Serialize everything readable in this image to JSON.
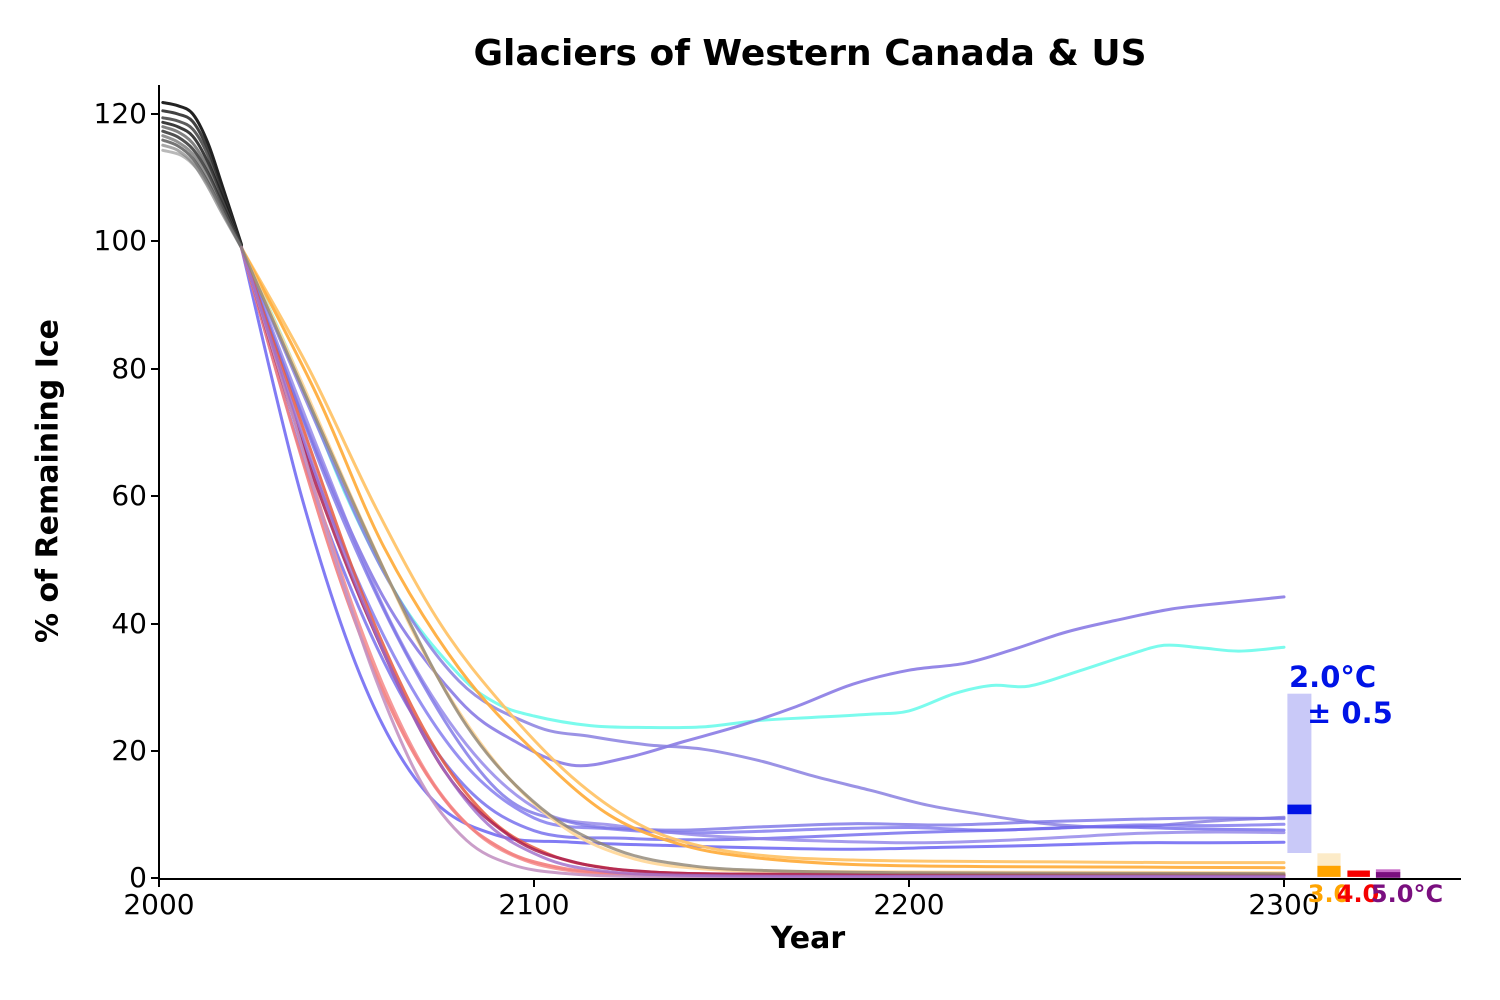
{
  "chart_data": {
    "type": "line",
    "title": "Glaciers of Western Canada & US",
    "xlabel": "Year",
    "ylabel": "% of Remaining Ice",
    "xlim": [
      2000,
      2347
    ],
    "ylim": [
      0,
      124.5
    ],
    "grid": false,
    "x_ticks": [
      "2000",
      "2100",
      "2200",
      "2300"
    ],
    "y_ticks": [
      "0",
      "20",
      "40",
      "60",
      "80",
      "100",
      "120"
    ],
    "annotations": {
      "t20_line1": "2.0°C",
      "t20_line2": "± 0.5",
      "t20_color": "#0013E6",
      "t30_label": "3.0",
      "t30_color": "#FFA400",
      "t40_label": "4.0",
      "t40_color": "#F40000",
      "t50_label": "5.0°C",
      "t50_color": "#7A0F7F"
    },
    "series": [
      {
        "name": "historical-1",
        "color": "#0a0a0a",
        "opacity": 0.9,
        "width": 3,
        "x": [
          2001,
          2005,
          2009,
          2013,
          2017,
          2022
        ],
        "y": [
          121.8,
          121.3,
          120.0,
          115.5,
          108.5,
          99.5
        ]
      },
      {
        "name": "historical-2",
        "color": "#202020",
        "opacity": 0.85,
        "width": 3,
        "x": [
          2001,
          2005,
          2009,
          2013,
          2017,
          2022
        ],
        "y": [
          120.5,
          120.0,
          118.8,
          114.5,
          108.0,
          99.4
        ]
      },
      {
        "name": "historical-3",
        "color": "#333333",
        "opacity": 0.8,
        "width": 3,
        "x": [
          2001,
          2005,
          2009,
          2013,
          2017,
          2022
        ],
        "y": [
          119.4,
          118.9,
          117.6,
          113.6,
          107.4,
          99.3
        ]
      },
      {
        "name": "historical-4",
        "color": "#1a1a1a",
        "opacity": 0.85,
        "width": 3,
        "x": [
          2001,
          2005,
          2009,
          2013,
          2017,
          2022
        ],
        "y": [
          118.7,
          118.0,
          116.5,
          112.5,
          106.8,
          99.2
        ]
      },
      {
        "name": "historical-5",
        "color": "#4d4d4d",
        "opacity": 0.7,
        "width": 3,
        "x": [
          2001,
          2005,
          2009,
          2013,
          2017,
          2022
        ],
        "y": [
          118.0,
          117.2,
          115.4,
          111.6,
          106.2,
          99.2
        ]
      },
      {
        "name": "historical-6",
        "color": "#262626",
        "opacity": 0.8,
        "width": 3,
        "x": [
          2001,
          2005,
          2009,
          2013,
          2017,
          2022
        ],
        "y": [
          117.3,
          116.4,
          114.5,
          110.8,
          105.7,
          99.1
        ]
      },
      {
        "name": "historical-7",
        "color": "#595959",
        "opacity": 0.65,
        "width": 3,
        "x": [
          2001,
          2005,
          2009,
          2013,
          2017,
          2022
        ],
        "y": [
          116.6,
          115.6,
          113.7,
          110.0,
          105.2,
          99.1
        ]
      },
      {
        "name": "historical-8",
        "color": "#3b3b3b",
        "opacity": 0.7,
        "width": 3,
        "x": [
          2001,
          2005,
          2009,
          2013,
          2017,
          2022
        ],
        "y": [
          115.9,
          115.0,
          113.0,
          109.3,
          104.7,
          99.0
        ]
      },
      {
        "name": "historical-9",
        "color": "#6e6e6e",
        "opacity": 0.6,
        "width": 3,
        "x": [
          2001,
          2005,
          2009,
          2013,
          2017,
          2022
        ],
        "y": [
          115.1,
          114.3,
          112.3,
          108.6,
          104.2,
          99.0
        ]
      },
      {
        "name": "historical-10",
        "color": "#808080",
        "opacity": 0.55,
        "width": 3,
        "x": [
          2001,
          2006,
          2010,
          2014,
          2018,
          2022
        ],
        "y": [
          114.3,
          113.5,
          111.5,
          108.0,
          103.4,
          99.0
        ]
      },
      {
        "name": "scenario-cyan",
        "color": "#74FBEC",
        "opacity": 0.95,
        "width": 3,
        "x": [
          2022,
          2035,
          2050,
          2065,
          2080,
          2090,
          2100,
          2115,
          2130,
          2145,
          2160,
          2175,
          2190,
          2200,
          2212,
          2222,
          2232,
          2245,
          2258,
          2268,
          2278,
          2288,
          2300
        ],
        "y": [
          99,
          82,
          60,
          43,
          32,
          27.5,
          25.5,
          24,
          23.7,
          23.8,
          24.8,
          25.3,
          25.8,
          26.3,
          29,
          30.3,
          30.2,
          32.5,
          35,
          36.6,
          36.2,
          35.7,
          36.3
        ]
      },
      {
        "name": "scenario-purple-rise",
        "color": "#8A7BE4",
        "opacity": 0.9,
        "width": 3,
        "x": [
          2022,
          2040,
          2060,
          2080,
          2095,
          2110,
          2125,
          2140,
          2155,
          2170,
          2185,
          2200,
          2215,
          2228,
          2242,
          2255,
          2270,
          2285,
          2300
        ],
        "y": [
          99,
          70,
          44,
          28,
          21.5,
          17.8,
          19,
          21.5,
          24,
          27,
          30.5,
          32.7,
          33.8,
          36,
          38.7,
          40.5,
          42.3,
          43.3,
          44.2
        ]
      },
      {
        "name": "scenario-purple-mid",
        "color": "#8A80E0",
        "opacity": 0.85,
        "width": 3,
        "x": [
          2022,
          2040,
          2060,
          2080,
          2100,
          2115,
          2130,
          2145,
          2160,
          2175,
          2190,
          2205,
          2220,
          2235,
          2250,
          2265,
          2280,
          2300
        ],
        "y": [
          99,
          74,
          48,
          31,
          24,
          22.3,
          21,
          20.3,
          18.5,
          16,
          13.8,
          11.5,
          10,
          8.7,
          8.1,
          8.3,
          9,
          9.6
        ]
      },
      {
        "name": "scenario-blue-a",
        "color": "#7D76EE",
        "opacity": 0.8,
        "width": 3,
        "x": [
          2022,
          2040,
          2060,
          2080,
          2100,
          2120,
          2140,
          2160,
          2180,
          2200,
          2220,
          2240,
          2260,
          2280,
          2300
        ],
        "y": [
          99,
          66,
          38,
          19,
          9.5,
          7.8,
          7.2,
          7.4,
          7.8,
          8,
          7.6,
          7.9,
          8.4,
          8.3,
          8.5
        ]
      },
      {
        "name": "scenario-blue-b",
        "color": "#6F68EC",
        "opacity": 0.8,
        "width": 3,
        "x": [
          2022,
          2040,
          2060,
          2080,
          2100,
          2125,
          2150,
          2175,
          2200,
          2225,
          2250,
          2275,
          2300
        ],
        "y": [
          99,
          63,
          34,
          15.5,
          7.5,
          6.3,
          6.1,
          6.6,
          7.2,
          7.6,
          8.1,
          7.8,
          7.6
        ]
      },
      {
        "name": "scenario-blue-c",
        "color": "#574FF0",
        "opacity": 0.75,
        "width": 3,
        "x": [
          2022,
          2038,
          2055,
          2072,
          2090,
          2110,
          2135,
          2160,
          2185,
          2210,
          2235,
          2260,
          2280,
          2300
        ],
        "y": [
          99,
          60,
          30,
          13,
          6.8,
          5.7,
          5.2,
          4.8,
          4.6,
          4.9,
          5.2,
          5.6,
          5.6,
          5.7
        ]
      },
      {
        "name": "scenario-blue-d",
        "color": "#8E82E8",
        "opacity": 0.8,
        "width": 3,
        "x": [
          2022,
          2042,
          2062,
          2082,
          2102,
          2122,
          2142,
          2162,
          2182,
          2202,
          2222,
          2242,
          2262,
          2282,
          2300
        ],
        "y": [
          99,
          68,
          40,
          21,
          10.5,
          8.3,
          6.9,
          6.2,
          5.8,
          5.6,
          5.9,
          6.5,
          7.1,
          7.3,
          7.2
        ]
      },
      {
        "name": "scenario-blue-e",
        "color": "#7A73E6",
        "opacity": 0.8,
        "width": 3,
        "x": [
          2022,
          2045,
          2068,
          2090,
          2110,
          2135,
          2160,
          2185,
          2210,
          2235,
          2260,
          2280,
          2300
        ],
        "y": [
          99,
          62,
          33,
          14,
          8.8,
          7.6,
          8.1,
          8.6,
          8.4,
          8.9,
          9.3,
          9.5,
          9.4
        ]
      },
      {
        "name": "scenario-amber-a",
        "color": "#FFC469",
        "opacity": 0.95,
        "width": 3,
        "x": [
          2022,
          2040,
          2058,
          2075,
          2092,
          2110,
          2128,
          2145,
          2165,
          2185,
          2210,
          2240,
          2270,
          2300
        ],
        "y": [
          99,
          80,
          58,
          40,
          27,
          16,
          8.5,
          5,
          3.4,
          2.9,
          2.7,
          2.6,
          2.5,
          2.5
        ]
      },
      {
        "name": "scenario-amber-b",
        "color": "#FFAE3F",
        "opacity": 0.95,
        "width": 3,
        "x": [
          2022,
          2042,
          2060,
          2080,
          2100,
          2120,
          2140,
          2160,
          2185,
          2215,
          2250,
          2300
        ],
        "y": [
          99,
          76,
          52,
          33,
          20,
          10,
          5.2,
          3.2,
          2.2,
          1.9,
          1.8,
          1.7
        ]
      },
      {
        "name": "scenario-amber-c",
        "color": "#FFD89B",
        "opacity": 0.95,
        "width": 3,
        "x": [
          2022,
          2038,
          2055,
          2072,
          2090,
          2108,
          2126,
          2145,
          2170,
          2210,
          2260,
          2300
        ],
        "y": [
          99,
          78,
          55,
          34,
          18,
          8,
          3.2,
          1.5,
          1.1,
          1.0,
          0.95,
          0.9
        ]
      },
      {
        "name": "scenario-salmon-a",
        "color": "#F58F8F",
        "opacity": 0.9,
        "width": 3,
        "x": [
          2022,
          2035,
          2048,
          2060,
          2072,
          2084,
          2096,
          2110,
          2130,
          2160,
          2220,
          2300
        ],
        "y": [
          99,
          74,
          49,
          30,
          16,
          7.5,
          3.2,
          1.2,
          0.5,
          0.35,
          0.3,
          0.3
        ]
      },
      {
        "name": "scenario-salmon-b",
        "color": "#F37F7E",
        "opacity": 0.9,
        "width": 3,
        "x": [
          2022,
          2036,
          2050,
          2064,
          2078,
          2092,
          2106,
          2122,
          2145,
          2200,
          2300
        ],
        "y": [
          99,
          70,
          44,
          24,
          11,
          4.5,
          1.8,
          0.8,
          0.45,
          0.35,
          0.3
        ]
      },
      {
        "name": "scenario-redorange",
        "color": "#E65A40",
        "opacity": 0.85,
        "width": 3,
        "x": [
          2022,
          2040,
          2056,
          2072,
          2088,
          2104,
          2120,
          2140,
          2170,
          2220,
          2300
        ],
        "y": [
          99,
          68,
          42,
          22,
          9.5,
          3.8,
          1.6,
          0.8,
          0.6,
          0.55,
          0.5
        ]
      },
      {
        "name": "scenario-crimson",
        "color": "#AC2050",
        "opacity": 0.85,
        "width": 3,
        "x": [
          2022,
          2040,
          2058,
          2076,
          2094,
          2112,
          2132,
          2155,
          2200,
          2300
        ],
        "y": [
          99,
          65,
          38,
          17,
          6.5,
          2.4,
          1.0,
          0.7,
          0.6,
          0.55
        ]
      },
      {
        "name": "scenario-plum",
        "color": "#C493C3",
        "opacity": 0.9,
        "width": 3,
        "x": [
          2022,
          2034,
          2046,
          2058,
          2070,
          2082,
          2094,
          2108,
          2130,
          2180,
          2300
        ],
        "y": [
          99,
          76,
          52,
          31,
          15,
          6,
          2.2,
          0.8,
          0.3,
          0.2,
          0.2
        ]
      },
      {
        "name": "scenario-violet",
        "color": "#9E6BCB",
        "opacity": 0.8,
        "width": 3,
        "x": [
          2022,
          2038,
          2054,
          2070,
          2086,
          2102,
          2118,
          2140,
          2180,
          2300
        ],
        "y": [
          99,
          70,
          44,
          23,
          9.5,
          3.4,
          1.2,
          0.5,
          0.35,
          0.3
        ]
      },
      {
        "name": "scenario-gray",
        "color": "#8E8474",
        "opacity": 0.8,
        "width": 3,
        "x": [
          2022,
          2042,
          2062,
          2082,
          2102,
          2122,
          2142,
          2165,
          2200,
          2260,
          2300
        ],
        "y": [
          99,
          72,
          46,
          24,
          11,
          4.5,
          2.0,
          1.2,
          0.9,
          0.8,
          0.75
        ]
      }
    ],
    "summary_bars": [
      {
        "name": "bar-2.0C",
        "label": "2.0°C ± 0.5",
        "color": "#0013E6",
        "band_color": "#C9C9F8",
        "x_year": [
          2300.9,
          2307.3
        ],
        "band": [
          4.0,
          29.0
        ],
        "median": [
          10.1,
          11.6
        ]
      },
      {
        "name": "bar-3.0C",
        "label": "3.0",
        "color": "#FFA400",
        "band_color": "#FCEBC8",
        "x_year": [
          2308.9,
          2315.1
        ],
        "band": [
          1.9,
          3.95
        ],
        "median": [
          0.25,
          2.0
        ]
      },
      {
        "name": "bar-4.0C",
        "label": "4.0",
        "color": "#F60000",
        "band_color": null,
        "x_year": [
          2316.9,
          2322.9
        ],
        "band": null,
        "median": [
          0.25,
          1.25
        ]
      },
      {
        "name": "bar-5.0C",
        "label": "5.0°C",
        "color": "#7A0F7F",
        "band_color": "#C96FC9",
        "x_year": [
          2324.5,
          2331.0
        ],
        "band": [
          0.95,
          1.45
        ],
        "median": [
          0.1,
          1.0
        ]
      }
    ]
  }
}
